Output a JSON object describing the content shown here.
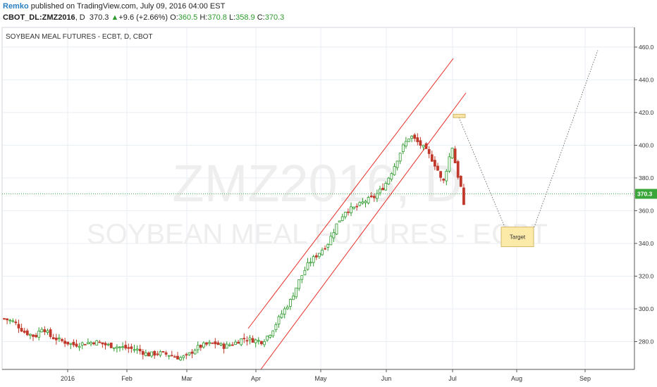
{
  "header": {
    "author": "Remko",
    "published": " published on TradingView.com, July 09, 2016 04:00 EST",
    "symbol": "CBOT_DL:ZMZ2016",
    "interval": ", D",
    "last": "370.3",
    "change": "+9.6 (+2.66%)",
    "o_label": "O:",
    "o_value": "360.5",
    "h_label": "H:",
    "h_value": "370.8",
    "l_label": "L:",
    "l_value": "358.9",
    "c_label": "C:",
    "c_value": "370.3"
  },
  "chart_data": {
    "type": "candlestick",
    "title": "SOYBEAN MEAL FUTURES - ECBT, D, CBOT",
    "watermark_symbol": "ZMZ2016, D",
    "watermark_name": "SOYBEAN MEAL FUTURES - ECBT",
    "y_ticks": [
      280.0,
      300.0,
      320.0,
      340.0,
      360.0,
      380.0,
      400.0,
      420.0,
      440.0,
      460.0
    ],
    "x_ticks": [
      "2016",
      "Feb",
      "Mar",
      "Apr",
      "May",
      "Jun",
      "Jul",
      "Aug",
      "Sep"
    ],
    "ylim": [
      263,
      472
    ],
    "last_price": 370.3,
    "last_price_label": "370.3",
    "target_label": "Target",
    "colors": {
      "up": "#2e9b2e",
      "down": "#c0392b",
      "channel": "#e8312a",
      "grid": "#e8eef3",
      "lastline": "#4caf50"
    },
    "approx_daily_closes": [
      {
        "period": "late Dec 2015",
        "range": [
          290,
          298
        ]
      },
      {
        "period": "Jan 2016",
        "range": [
          276,
          290
        ]
      },
      {
        "period": "Feb 2016",
        "range": [
          272,
          280
        ]
      },
      {
        "period": "Mar 2016",
        "range": [
          268,
          282
        ]
      },
      {
        "period": "Apr 2016",
        "range": [
          276,
          330
        ]
      },
      {
        "period": "May 2016",
        "range": [
          330,
          375
        ]
      },
      {
        "period": "early Jun 2016",
        "range": [
          375,
          415
        ]
      },
      {
        "period": "late Jun 2016",
        "range": [
          372,
          408
        ]
      },
      {
        "period": "early Jul 2016",
        "range": [
          360,
          382
        ]
      }
    ]
  }
}
